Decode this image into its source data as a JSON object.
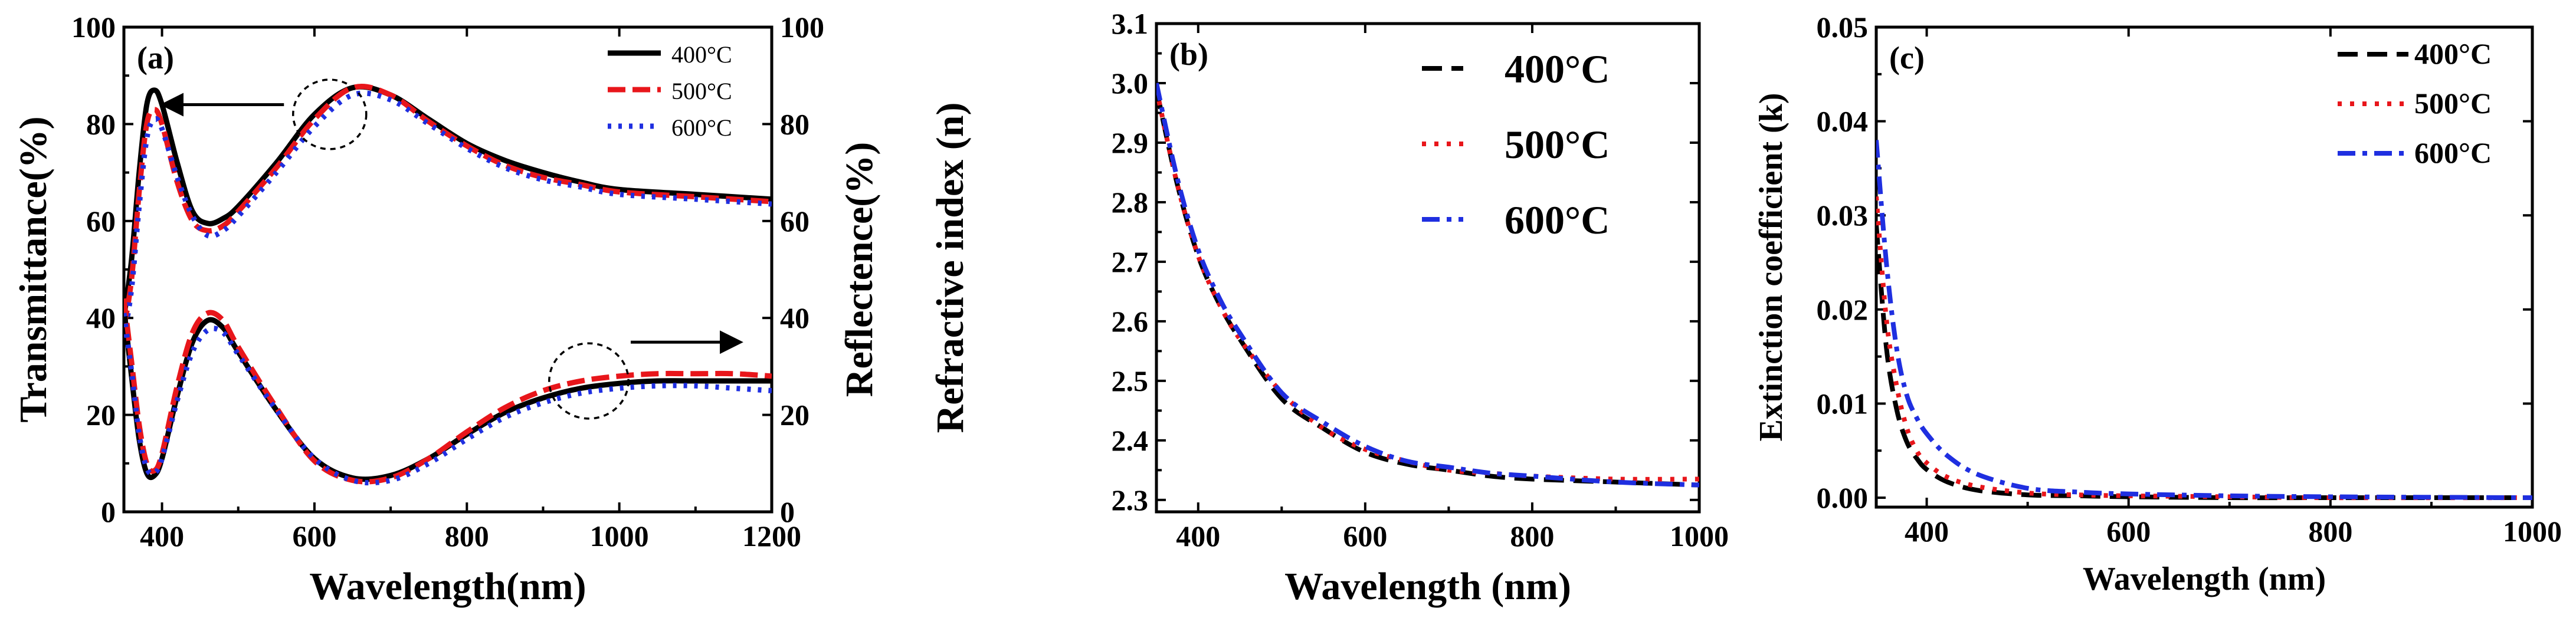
{
  "chart_data": [
    {
      "type": "line",
      "tag": "(a)",
      "xlabel": "Wavelength(nm)",
      "ylabel": "Transmittance(%)",
      "ylabel_right": "Reflectence(%)",
      "xlim": [
        350,
        1200
      ],
      "ylim": [
        0,
        100
      ],
      "ylim_right": [
        0,
        100
      ],
      "xticks": [
        400,
        600,
        800,
        1000,
        1200
      ],
      "yticks": [
        0,
        20,
        40,
        60,
        80,
        100
      ],
      "yticks_right": [
        0,
        20,
        40,
        60,
        80,
        100
      ],
      "legend_position": "top-right",
      "grid": false,
      "colors": [
        "#000000",
        "#e8161b",
        "#1f2fe0"
      ],
      "series": [
        {
          "name": "400°C",
          "group": "transmittance",
          "color": "#000000",
          "x": [
            350,
            360,
            370,
            380,
            390,
            400,
            420,
            440,
            460,
            480,
            500,
            550,
            600,
            650,
            700,
            750,
            800,
            850,
            900,
            950,
            1000,
            1100,
            1200
          ],
          "y": [
            40,
            52,
            70,
            84,
            87,
            84,
            72,
            62,
            59.5,
            60.5,
            63,
            72,
            82,
            87.5,
            86,
            81,
            76,
            72.5,
            70,
            68,
            66.5,
            65.5,
            64.5
          ]
        },
        {
          "name": "500°C",
          "group": "transmittance",
          "color": "#e8161b",
          "x": [
            350,
            360,
            370,
            380,
            390,
            400,
            420,
            440,
            460,
            480,
            500,
            550,
            600,
            650,
            700,
            750,
            800,
            850,
            900,
            950,
            1000,
            1100,
            1200
          ],
          "y": [
            38,
            48,
            66,
            80,
            83,
            80,
            68,
            60,
            58,
            59,
            62,
            71,
            81,
            87.5,
            86,
            80.5,
            75.5,
            71.5,
            69,
            67.5,
            66,
            65,
            64
          ]
        },
        {
          "name": "600°C",
          "group": "transmittance",
          "color": "#1f2fe0",
          "x": [
            350,
            360,
            370,
            380,
            390,
            400,
            420,
            440,
            460,
            480,
            500,
            550,
            600,
            650,
            700,
            750,
            800,
            850,
            900,
            950,
            1000,
            1100,
            1200
          ],
          "y": [
            36,
            46,
            63,
            77,
            81,
            79,
            69,
            61,
            57,
            58,
            61,
            70,
            79.5,
            86,
            85,
            80,
            75,
            71,
            68.5,
            67,
            65.5,
            64.5,
            63.5
          ]
        },
        {
          "name": "400°C",
          "group": "reflectance",
          "color": "#000000",
          "x": [
            350,
            360,
            370,
            380,
            390,
            400,
            420,
            440,
            460,
            480,
            500,
            550,
            600,
            650,
            700,
            750,
            800,
            850,
            900,
            950,
            1000,
            1050,
            1100,
            1150,
            1200
          ],
          "y": [
            42,
            28,
            15,
            8,
            7.5,
            11,
            24,
            35,
            39.5,
            38,
            33,
            21,
            11,
            7,
            7.5,
            11,
            16,
            20.5,
            23.5,
            25.5,
            26.5,
            27,
            27,
            27,
            27
          ]
        },
        {
          "name": "500°C",
          "group": "reflectance",
          "color": "#e8161b",
          "x": [
            350,
            360,
            370,
            380,
            390,
            400,
            420,
            440,
            460,
            480,
            500,
            550,
            600,
            650,
            700,
            750,
            800,
            850,
            900,
            950,
            1000,
            1050,
            1100,
            1150,
            1200
          ],
          "y": [
            44,
            31,
            18,
            10,
            8.5,
            12,
            26,
            37,
            41,
            39.5,
            34,
            21.5,
            10.5,
            6.5,
            7,
            11,
            16.5,
            21.5,
            25,
            27,
            28,
            28.5,
            28.5,
            28.5,
            28
          ]
        },
        {
          "name": "600°C",
          "group": "reflectance",
          "color": "#1f2fe0",
          "x": [
            350,
            360,
            370,
            380,
            390,
            400,
            420,
            440,
            460,
            480,
            500,
            550,
            600,
            650,
            700,
            750,
            800,
            850,
            900,
            950,
            1000,
            1050,
            1100,
            1150,
            1200
          ],
          "y": [
            41,
            29,
            16,
            9,
            8,
            11,
            23,
            33,
            37.5,
            37,
            32.5,
            21,
            11,
            6.5,
            6.5,
            10,
            15,
            19.5,
            22.5,
            24.5,
            25.5,
            26,
            26,
            25.5,
            25
          ]
        }
      ],
      "annotations": [
        {
          "type": "dashed-circle",
          "cx": 620,
          "cy": 82,
          "r": 48,
          "target": "transmittance"
        },
        {
          "type": "arrow",
          "x_from": 560,
          "y_from": 84,
          "x_to": 405,
          "y_to": 84,
          "direction": "left"
        },
        {
          "type": "dashed-circle",
          "cx": 960,
          "cy": 27,
          "r": 52,
          "target": "reflectance"
        },
        {
          "type": "arrow",
          "x_from": 1015,
          "y_from": 35,
          "x_to": 1155,
          "y_to": 35,
          "direction": "right"
        }
      ]
    },
    {
      "type": "line",
      "tag": "(b)",
      "xlabel": "Wavelength (nm)",
      "ylabel": "Refractive index (n)",
      "xlim": [
        350,
        1000
      ],
      "ylim": [
        2.28,
        3.1
      ],
      "xticks": [
        400,
        600,
        800,
        1000
      ],
      "yticks": [
        2.3,
        2.4,
        2.5,
        2.6,
        2.7,
        2.8,
        2.9,
        3.0,
        3.1
      ],
      "ytick_labels": [
        "2.3",
        "2.4",
        "2.5",
        "2.6",
        "2.7",
        "2.8",
        "2.9",
        "3.0",
        "3.1"
      ],
      "legend_position": "top-right",
      "grid": false,
      "series": [
        {
          "name": "400°C",
          "color": "#000000",
          "dash": "long-dash",
          "x": [
            350,
            375,
            400,
            425,
            450,
            500,
            550,
            600,
            650,
            700,
            750,
            800,
            900,
            1000
          ],
          "y": [
            2.99,
            2.83,
            2.71,
            2.63,
            2.57,
            2.47,
            2.42,
            2.38,
            2.36,
            2.35,
            2.34,
            2.335,
            2.33,
            2.325
          ]
        },
        {
          "name": "500°C",
          "color": "#e8161b",
          "dash": "dot",
          "x": [
            350,
            375,
            400,
            425,
            450,
            500,
            550,
            600,
            650,
            700,
            750,
            800,
            900,
            1000
          ],
          "y": [
            2.99,
            2.83,
            2.71,
            2.63,
            2.57,
            2.48,
            2.42,
            2.385,
            2.365,
            2.35,
            2.345,
            2.34,
            2.335,
            2.335
          ]
        },
        {
          "name": "600°C",
          "color": "#1f2fe0",
          "dash": "dash-dot",
          "x": [
            350,
            375,
            400,
            425,
            450,
            500,
            550,
            600,
            650,
            700,
            750,
            800,
            900,
            1000
          ],
          "y": [
            3.0,
            2.84,
            2.72,
            2.64,
            2.58,
            2.48,
            2.43,
            2.39,
            2.365,
            2.355,
            2.345,
            2.34,
            2.33,
            2.325
          ]
        }
      ]
    },
    {
      "type": "line",
      "tag": "(c)",
      "xlabel": "Wavelength (nm)",
      "ylabel": "Extinction coefficient (k)",
      "xlim": [
        350,
        1000
      ],
      "ylim": [
        -0.001,
        0.05
      ],
      "xticks": [
        400,
        600,
        800,
        1000
      ],
      "yticks": [
        0.0,
        0.01,
        0.02,
        0.03,
        0.04,
        0.05
      ],
      "ytick_labels": [
        "0.00",
        "0.01",
        "0.02",
        "0.03",
        "0.04",
        "0.05"
      ],
      "legend_position": "top-right",
      "grid": false,
      "series": [
        {
          "name": "400°C",
          "color": "#000000",
          "dash": "long-dash",
          "x": [
            350,
            360,
            370,
            380,
            390,
            400,
            420,
            450,
            500,
            550,
            600,
            700,
            800,
            1000
          ],
          "y": [
            0.029,
            0.016,
            0.0095,
            0.006,
            0.0042,
            0.003,
            0.0017,
            0.0008,
            0.0003,
            0.0002,
            0.0001,
            0.0,
            0.0,
            0.0
          ]
        },
        {
          "name": "500°C",
          "color": "#e8161b",
          "dash": "dot",
          "x": [
            350,
            360,
            370,
            380,
            390,
            400,
            420,
            450,
            500,
            550,
            600,
            700,
            800,
            1000
          ],
          "y": [
            0.032,
            0.019,
            0.012,
            0.0075,
            0.005,
            0.0037,
            0.0022,
            0.0012,
            0.0005,
            0.0003,
            0.0002,
            0.0001,
            0.0,
            0.0
          ]
        },
        {
          "name": "600°C",
          "color": "#1f2fe0",
          "dash": "dash-dot",
          "x": [
            350,
            360,
            370,
            380,
            390,
            400,
            420,
            450,
            500,
            550,
            600,
            700,
            800,
            1000
          ],
          "y": [
            0.038,
            0.025,
            0.016,
            0.011,
            0.0085,
            0.0068,
            0.0045,
            0.0025,
            0.001,
            0.0006,
            0.0004,
            0.0002,
            0.0001,
            0.0
          ]
        }
      ]
    }
  ]
}
